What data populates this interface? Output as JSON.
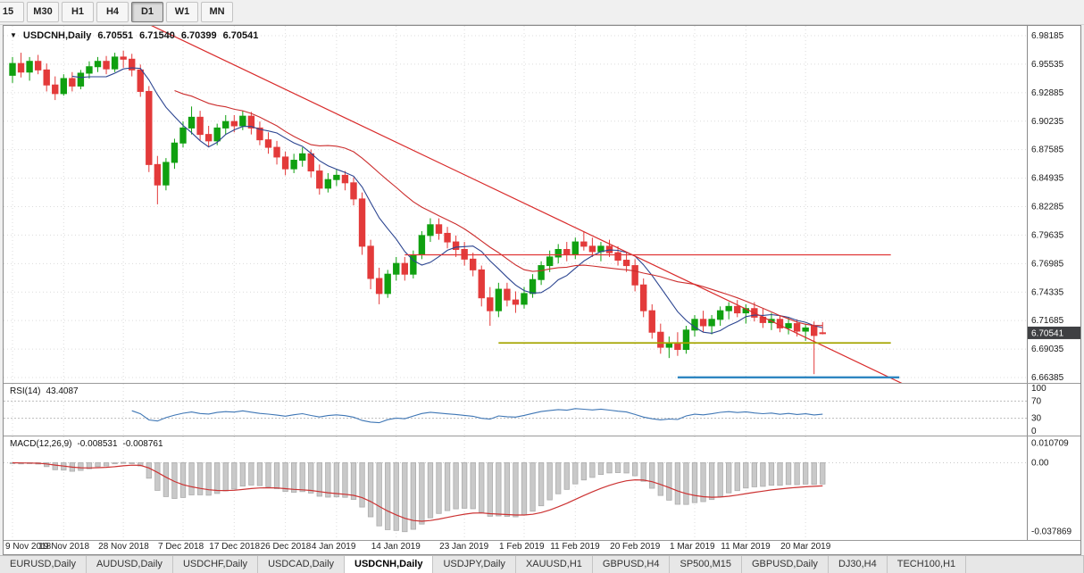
{
  "toolbar": {
    "timeframes": [
      {
        "label": "15",
        "active": false
      },
      {
        "label": "M30",
        "active": false
      },
      {
        "label": "H1",
        "active": false
      },
      {
        "label": "H4",
        "active": false
      },
      {
        "label": "D1",
        "active": true
      },
      {
        "label": "W1",
        "active": false
      },
      {
        "label": "MN",
        "active": false
      }
    ]
  },
  "chart": {
    "marker": "▼",
    "symbol": "USDCNH,Daily",
    "open": "6.70551",
    "high": "6.71540",
    "low": "6.70399",
    "close": "6.70541",
    "current_price": "6.70541",
    "price_axis_labels": [
      "6.98185",
      "6.95535",
      "6.92885",
      "6.90235",
      "6.87585",
      "6.84935",
      "6.82285",
      "6.79635",
      "6.76985",
      "6.74335",
      "6.71685",
      "6.69035",
      "6.66385"
    ]
  },
  "panels": {
    "rsi": {
      "label": "RSI(14)",
      "value": "43.4087",
      "axis": [
        "100",
        "70",
        "30",
        "0"
      ]
    },
    "macd": {
      "label": "MACD(12,26,9)",
      "main": "-0.008531",
      "signal": "-0.008761",
      "axis": [
        "0.010709",
        "0.00",
        "-0.037869"
      ]
    }
  },
  "time_axis": {
    "ticks": [
      {
        "index": 0,
        "label": "9 Nov 2018"
      },
      {
        "index": 6,
        "label": "19 Nov 2018"
      },
      {
        "index": 13,
        "label": "28 Nov 2018"
      },
      {
        "index": 20,
        "label": "7 Dec 2018"
      },
      {
        "index": 26,
        "label": "17 Dec 2018"
      },
      {
        "index": 32,
        "label": "26 Dec 2018"
      },
      {
        "index": 38,
        "label": "4 Jan 2019"
      },
      {
        "index": 45,
        "label": "14 Jan 2019"
      },
      {
        "index": 53,
        "label": "23 Jan 2019"
      },
      {
        "index": 60,
        "label": "1 Feb 2019"
      },
      {
        "index": 66,
        "label": "11 Feb 2019"
      },
      {
        "index": 73,
        "label": "20 Feb 2019"
      },
      {
        "index": 80,
        "label": "1 Mar 2019"
      },
      {
        "index": 86,
        "label": "11 Mar 2019"
      },
      {
        "index": 93,
        "label": "20 Mar 2019"
      }
    ]
  },
  "tabs": [
    {
      "label": "EURUSD,Daily",
      "active": false
    },
    {
      "label": "AUDUSD,Daily",
      "active": false
    },
    {
      "label": "USDCHF,Daily",
      "active": false
    },
    {
      "label": "USDCAD,Daily",
      "active": false
    },
    {
      "label": "USDCNH,Daily",
      "active": true
    },
    {
      "label": "USDJPY,Daily",
      "active": false
    },
    {
      "label": "XAUUSD,H1",
      "active": false
    },
    {
      "label": "GBPUSD,H4",
      "active": false
    },
    {
      "label": "SP500,M15",
      "active": false
    },
    {
      "label": "GBPUSD,Daily",
      "active": false
    },
    {
      "label": "DJ30,H4",
      "active": false
    },
    {
      "label": "TECH100,H1",
      "active": false
    }
  ],
  "colors": {
    "up": "#10A010",
    "down": "#E33A3A",
    "ma_fast": "#2B4490",
    "ma_slow": "#CC2E2E",
    "trendline": "#D92B2B",
    "hline_red": "#E03535",
    "hline_olive": "#A5A500",
    "hline_blue": "#2E86C1",
    "rsi": "#3E76B5",
    "macd_bar": "#C9C9C9",
    "macd_bar_border": "#ACACAC",
    "macd_signal": "#CC3333",
    "grid": "#DCDCDC",
    "price_tag_bg": "#3F4043"
  },
  "chart_data": {
    "type": "candlestick",
    "symbol": "USDCNH",
    "period": "Daily",
    "y_max": 6.98185,
    "y_min": 6.66385,
    "ma_fast_period": 8,
    "ma_slow_period": 20,
    "rsi_period": 14,
    "macd": {
      "fast": 12,
      "slow": 26,
      "signal": 9
    },
    "trendline": {
      "from_index": 14,
      "from_price": 7.0,
      "to_index": 106,
      "to_price": 6.652
    },
    "hlines": [
      {
        "name": "resistance-line",
        "price": 6.778,
        "from_index": 46,
        "to_index": 103
      },
      {
        "name": "support-line",
        "price": 6.696,
        "from_index": 57,
        "to_index": 103
      },
      {
        "name": "lower-support-line",
        "price": 6.664,
        "from_index": 78,
        "to_index": 104
      }
    ],
    "ohlc": [
      [
        6.945,
        6.962,
        6.938,
        6.956
      ],
      [
        6.956,
        6.966,
        6.943,
        6.948
      ],
      [
        6.948,
        6.962,
        6.94,
        6.958
      ],
      [
        6.958,
        6.964,
        6.946,
        6.95
      ],
      [
        6.95,
        6.956,
        6.93,
        6.936
      ],
      [
        6.936,
        6.944,
        6.922,
        6.928
      ],
      [
        6.928,
        6.946,
        6.926,
        6.942
      ],
      [
        6.942,
        6.948,
        6.93,
        6.935
      ],
      [
        6.935,
        6.95,
        6.932,
        6.947
      ],
      [
        6.947,
        6.958,
        6.942,
        6.953
      ],
      [
        6.953,
        6.962,
        6.948,
        6.958
      ],
      [
        6.958,
        6.963,
        6.946,
        6.951
      ],
      [
        6.951,
        6.966,
        6.948,
        6.962
      ],
      [
        6.962,
        6.968,
        6.952,
        6.96
      ],
      [
        6.96,
        6.965,
        6.944,
        6.95
      ],
      [
        6.95,
        6.955,
        6.925,
        6.93
      ],
      [
        6.93,
        6.935,
        6.855,
        6.862
      ],
      [
        6.862,
        6.87,
        6.825,
        6.843
      ],
      [
        6.843,
        6.868,
        6.838,
        6.864
      ],
      [
        6.864,
        6.886,
        6.858,
        6.882
      ],
      [
        6.882,
        6.902,
        6.878,
        6.896
      ],
      [
        6.896,
        6.916,
        6.89,
        6.906
      ],
      [
        6.906,
        6.912,
        6.884,
        6.89
      ],
      [
        6.89,
        6.898,
        6.878,
        6.884
      ],
      [
        6.884,
        6.9,
        6.88,
        6.896
      ],
      [
        6.896,
        6.908,
        6.89,
        6.902
      ],
      [
        6.902,
        6.908,
        6.892,
        6.898
      ],
      [
        6.898,
        6.912,
        6.894,
        6.907
      ],
      [
        6.907,
        6.911,
        6.89,
        6.896
      ],
      [
        6.896,
        6.902,
        6.88,
        6.885
      ],
      [
        6.885,
        6.892,
        6.872,
        6.878
      ],
      [
        6.878,
        6.884,
        6.862,
        6.869
      ],
      [
        6.869,
        6.874,
        6.852,
        6.858
      ],
      [
        6.858,
        6.872,
        6.854,
        6.866
      ],
      [
        6.866,
        6.878,
        6.86,
        6.872
      ],
      [
        6.872,
        6.876,
        6.85,
        6.856
      ],
      [
        6.856,
        6.862,
        6.834,
        6.84
      ],
      [
        6.84,
        6.854,
        6.836,
        6.848
      ],
      [
        6.848,
        6.858,
        6.842,
        6.852
      ],
      [
        6.852,
        6.856,
        6.838,
        6.845
      ],
      [
        6.845,
        6.85,
        6.824,
        6.83
      ],
      [
        6.83,
        6.836,
        6.778,
        6.786
      ],
      [
        6.786,
        6.792,
        6.746,
        6.756
      ],
      [
        6.756,
        6.766,
        6.732,
        6.742
      ],
      [
        6.742,
        6.764,
        6.738,
        6.76
      ],
      [
        6.76,
        6.776,
        6.754,
        6.77
      ],
      [
        6.77,
        6.776,
        6.754,
        6.76
      ],
      [
        6.76,
        6.782,
        6.756,
        6.778
      ],
      [
        6.778,
        6.8,
        6.774,
        6.796
      ],
      [
        6.796,
        6.812,
        6.79,
        6.806
      ],
      [
        6.806,
        6.812,
        6.792,
        6.798
      ],
      [
        6.798,
        6.804,
        6.784,
        6.79
      ],
      [
        6.79,
        6.796,
        6.776,
        6.783
      ],
      [
        6.783,
        6.79,
        6.768,
        6.774
      ],
      [
        6.774,
        6.78,
        6.758,
        6.764
      ],
      [
        6.764,
        6.768,
        6.73,
        6.738
      ],
      [
        6.738,
        6.748,
        6.712,
        6.726
      ],
      [
        6.726,
        6.752,
        6.72,
        6.746
      ],
      [
        6.746,
        6.752,
        6.73,
        6.736
      ],
      [
        6.736,
        6.744,
        6.724,
        6.732
      ],
      [
        6.732,
        6.748,
        6.728,
        6.742
      ],
      [
        6.742,
        6.76,
        6.738,
        6.755
      ],
      [
        6.755,
        6.772,
        6.75,
        6.768
      ],
      [
        6.768,
        6.782,
        6.762,
        6.776
      ],
      [
        6.776,
        6.788,
        6.77,
        6.783
      ],
      [
        6.783,
        6.79,
        6.772,
        6.778
      ],
      [
        6.778,
        6.794,
        6.774,
        6.79
      ],
      [
        6.79,
        6.8,
        6.782,
        6.786
      ],
      [
        6.786,
        6.794,
        6.776,
        6.781
      ],
      [
        6.781,
        6.79,
        6.772,
        6.786
      ],
      [
        6.786,
        6.792,
        6.776,
        6.78
      ],
      [
        6.78,
        6.786,
        6.768,
        6.773
      ],
      [
        6.773,
        6.78,
        6.762,
        6.768
      ],
      [
        6.768,
        6.774,
        6.744,
        6.75
      ],
      [
        6.75,
        6.756,
        6.72,
        6.726
      ],
      [
        6.726,
        6.732,
        6.7,
        6.706
      ],
      [
        6.706,
        6.714,
        6.686,
        6.692
      ],
      [
        6.692,
        6.702,
        6.682,
        6.696
      ],
      [
        6.696,
        6.706,
        6.684,
        6.69
      ],
      [
        6.69,
        6.712,
        6.686,
        6.708
      ],
      [
        6.708,
        6.722,
        6.702,
        6.718
      ],
      [
        6.718,
        6.726,
        6.706,
        6.712
      ],
      [
        6.712,
        6.722,
        6.704,
        6.718
      ],
      [
        6.718,
        6.73,
        6.712,
        6.726
      ],
      [
        6.726,
        6.734,
        6.718,
        6.73
      ],
      [
        6.73,
        6.736,
        6.72,
        6.724
      ],
      [
        6.724,
        6.732,
        6.714,
        6.728
      ],
      [
        6.728,
        6.734,
        6.716,
        6.72
      ],
      [
        6.72,
        6.728,
        6.71,
        6.715
      ],
      [
        6.715,
        6.724,
        6.708,
        6.718
      ],
      [
        6.718,
        6.722,
        6.706,
        6.71
      ],
      [
        6.71,
        6.72,
        6.704,
        6.714
      ],
      [
        6.714,
        6.718,
        6.702,
        6.707
      ],
      [
        6.707,
        6.714,
        6.698,
        6.71
      ],
      [
        6.712,
        6.716,
        6.667,
        6.703
      ],
      [
        6.7055,
        6.7154,
        6.704,
        6.70541
      ]
    ]
  }
}
